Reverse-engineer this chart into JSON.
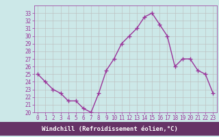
{
  "hours": [
    0,
    1,
    2,
    3,
    4,
    5,
    6,
    7,
    8,
    9,
    10,
    11,
    12,
    13,
    14,
    15,
    16,
    17,
    18,
    19,
    20,
    21,
    22,
    23
  ],
  "values": [
    25,
    24,
    23,
    22.5,
    21.5,
    21.5,
    20.5,
    20,
    22.5,
    25.5,
    27,
    29,
    30,
    31,
    32.5,
    33,
    31.5,
    30,
    26,
    27,
    27,
    25.5,
    25,
    22.5
  ],
  "line_color": "#993399",
  "marker": "+",
  "marker_size": 4,
  "bg_color": "#cce8e8",
  "grid_color": "#bbbbbb",
  "xlabel": "Windchill (Refroidissement éolien,°C)",
  "ylim": [
    20,
    34
  ],
  "xlim": [
    -0.5,
    23.5
  ],
  "yticks": [
    20,
    21,
    22,
    23,
    24,
    25,
    26,
    27,
    28,
    29,
    30,
    31,
    32,
    33
  ],
  "xticks": [
    0,
    1,
    2,
    3,
    4,
    5,
    6,
    7,
    8,
    9,
    10,
    11,
    12,
    13,
    14,
    15,
    16,
    17,
    18,
    19,
    20,
    21,
    22,
    23
  ],
  "xlabel_color": "#ffffff",
  "xlabel_bg": "#663366",
  "tick_label_color": "#993399",
  "tick_label_fontsize": 5.5,
  "xlabel_fontsize": 6.5,
  "linewidth": 1.0,
  "spine_color": "#993399"
}
